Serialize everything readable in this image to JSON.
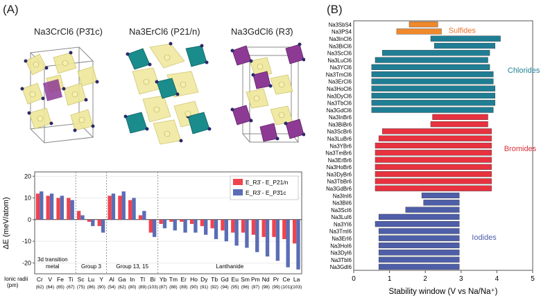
{
  "panels": {
    "a_label": "(A)",
    "b_label": "(B)"
  },
  "structures": [
    {
      "title": "Na3CrCl6 (P3̄1c)",
      "formula": "Na3CrCl6",
      "space_group": "P3̄1c"
    },
    {
      "title": "Na3ErCl6 (P21/n)",
      "formula": "Na3ErCl6",
      "space_group": "P21/n"
    },
    {
      "title": "Na3GdCl6 (R3̄)",
      "formula": "Na3GdCl6",
      "space_group": "R3̄"
    }
  ],
  "colors": {
    "red": "#f0434e",
    "blue": "#5a6db5",
    "orange": "#f0892c",
    "teal": "#1f7e94",
    "crimson": "#e8323f",
    "navy": "#4e5ea9",
    "yellow": "#f2eca0",
    "purple": "#8d3a95",
    "cyan": "#1a8c8c"
  },
  "chart_data": [
    {
      "type": "bar",
      "ylabel": "ΔE (meV/atom)",
      "ylim": [
        -25,
        22
      ],
      "yticks": [
        -20,
        -10,
        0,
        10,
        20
      ],
      "legend": [
        "E_R3̄ - E_P21/n",
        "E_R3̄ - E_P3̄1c"
      ],
      "series_names": [
        "E_R3̄ - E_P21/n",
        "E_R3̄ - E_P3̄1c"
      ],
      "xlabel_prefix": [
        "Ionic radii",
        "(pm)"
      ],
      "categories": [
        "Cr",
        "V",
        "Fe",
        "Ti",
        "Sc",
        "Lu",
        "Y",
        "Al",
        "Ga",
        "In",
        "Tl",
        "Bi",
        "Yb",
        "Tm",
        "Er",
        "Ho",
        "Dy",
        "Tb",
        "Gd",
        "Eu",
        "Sm",
        "Pm",
        "Nd",
        "Pr",
        "Ce",
        "La"
      ],
      "radii": [
        "(62)",
        "(64)",
        "(65)",
        "(67)",
        "(75)",
        "(86)",
        "(90)",
        "(54)",
        "(62)",
        "(80)",
        "(89)",
        "(103)",
        "(87)",
        "(88)",
        "(89)",
        "(90)",
        "(91)",
        "(92)",
        "(94)",
        "(95)",
        "(96)",
        "(97)",
        "(98)",
        "(99)",
        "(101)",
        "(103)"
      ],
      "series": [
        {
          "name": "E_R3̄ - E_P21/n",
          "values": [
            12,
            11,
            10,
            10,
            4,
            -1,
            -3,
            11,
            11,
            9,
            2,
            -6,
            -2,
            -1,
            -1,
            -2,
            -3,
            -4,
            -5,
            -6,
            -6,
            -7,
            -8,
            -8,
            -9,
            -11
          ]
        },
        {
          "name": "E_R3̄ - E_P3̄1c",
          "values": [
            13,
            12,
            11,
            9,
            2,
            -3,
            -6,
            12,
            13,
            10,
            4,
            -8,
            -4,
            -5,
            -6,
            -6,
            -7,
            -9,
            -10,
            -12,
            -13,
            -15,
            -17,
            -19,
            -22,
            -23
          ]
        }
      ],
      "groups": [
        {
          "label": "3d transition\nmetal",
          "line1": "3d transition",
          "line2": "metal",
          "from": 0,
          "to": 3
        },
        {
          "label": "Group 3",
          "from": 4,
          "to": 6
        },
        {
          "label": "Group 13, 15",
          "from": 7,
          "to": 11
        },
        {
          "label": "Lanthanide",
          "from": 12,
          "to": 25
        }
      ]
    },
    {
      "type": "bar",
      "orientation": "horizontal",
      "xlabel": "Stability window (V vs Na/Na⁺)",
      "xlim": [
        0,
        5
      ],
      "xticks": [
        0,
        1,
        2,
        3,
        4,
        5
      ],
      "categories": [
        "Na3SbS4",
        "Na3PS4",
        "Na3InCl6",
        "Na3BiCl6",
        "Na3ScCl6",
        "Na3LuCl6",
        "Na3YCl6",
        "Na3TmCl6",
        "Na3ErCl6",
        "Na3HoCl6",
        "Na3DyCl6",
        "Na3TbCl6",
        "Na3GdCl6",
        "Na3InBr6",
        "Na3BiBr6",
        "Na3ScBr6",
        "Na3LuBr6",
        "Na3YBr6",
        "Na3TmBr6",
        "Na3ErBr6",
        "Na3HoBr6",
        "Na3DyBr6",
        "Na3TbBr6",
        "Na3GdBr6",
        "Na3InI6",
        "Na3BiI6",
        "Na3ScI6",
        "Na3LuI6",
        "Na3YI6",
        "Na3TmI6",
        "Na3ErI6",
        "Na3HoI6",
        "Na3DyI6",
        "Na3TbI6",
        "Na3GdI6"
      ],
      "ranges": [
        [
          1.55,
          2.35
        ],
        [
          1.2,
          2.45
        ],
        [
          2.15,
          4.1
        ],
        [
          2.25,
          3.95
        ],
        [
          0.8,
          3.8
        ],
        [
          0.6,
          3.75
        ],
        [
          0.5,
          3.8
        ],
        [
          0.5,
          3.9
        ],
        [
          0.5,
          3.9
        ],
        [
          0.5,
          3.95
        ],
        [
          0.5,
          3.95
        ],
        [
          0.5,
          3.95
        ],
        [
          0.5,
          3.9
        ],
        [
          2.2,
          3.75
        ],
        [
          2.15,
          3.75
        ],
        [
          0.8,
          3.85
        ],
        [
          0.7,
          3.85
        ],
        [
          0.6,
          3.85
        ],
        [
          0.6,
          3.85
        ],
        [
          0.6,
          3.85
        ],
        [
          0.6,
          3.85
        ],
        [
          0.6,
          3.85
        ],
        [
          0.6,
          3.85
        ],
        [
          0.6,
          3.85
        ],
        [
          1.9,
          2.95
        ],
        [
          1.95,
          2.95
        ],
        [
          1.45,
          2.95
        ],
        [
          0.7,
          2.95
        ],
        [
          0.6,
          2.95
        ],
        [
          0.7,
          2.95
        ],
        [
          0.7,
          2.95
        ],
        [
          0.7,
          2.95
        ],
        [
          0.7,
          2.95
        ],
        [
          0.7,
          2.95
        ],
        [
          0.7,
          2.95
        ]
      ],
      "groups": [
        {
          "name": "Sulfides",
          "from": 0,
          "to": 1,
          "color": "#f0892c",
          "text_color": "#e8722a"
        },
        {
          "name": "Chlorides",
          "from": 2,
          "to": 12,
          "color": "#1f7e94",
          "text_color": "#1f7e94"
        },
        {
          "name": "Bromides",
          "from": 13,
          "to": 23,
          "color": "#e8323f",
          "text_color": "#d8303b"
        },
        {
          "name": "Iodides",
          "from": 24,
          "to": 34,
          "color": "#4e5ea9",
          "text_color": "#4e5ea9"
        }
      ]
    }
  ]
}
